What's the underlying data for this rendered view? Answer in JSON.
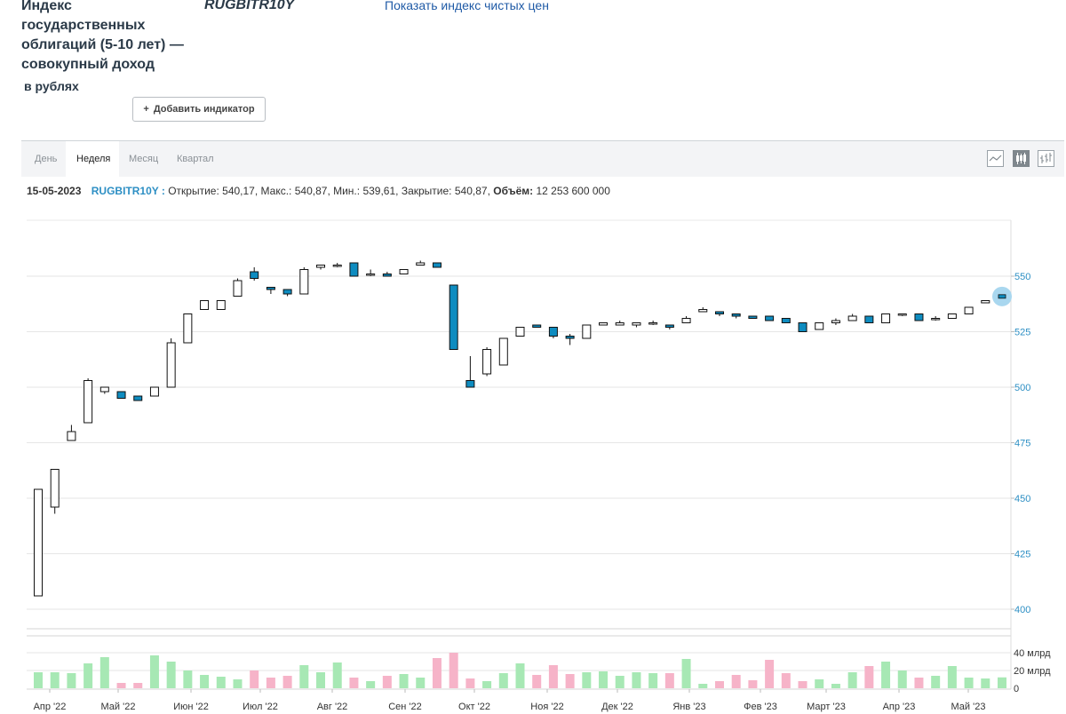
{
  "header": {
    "title": "Индекс государственных облигаций (5-10 лет) — совокупный доход",
    "subtitle": "в рублях",
    "ticker": "RUGBITR10Y",
    "clean_price_link": "Показать индекс чистых цен",
    "add_indicator_label": "Добавить индикатор"
  },
  "tabs": [
    {
      "label": "День",
      "active": false
    },
    {
      "label": "Неделя",
      "active": true
    },
    {
      "label": "Месяц",
      "active": false
    },
    {
      "label": "Квартал",
      "active": false
    }
  ],
  "chart_type_icons": [
    "line-chart-icon",
    "candlestick-chart-icon",
    "ohlc-bars-icon"
  ],
  "info_bar": {
    "date": "15-05-2023",
    "symbol": "RUGBITR10Y :",
    "open_label": "Открытие:",
    "open": "540,17",
    "high_label": "Макс.:",
    "high": "540,87",
    "low_label": "Мин.:",
    "low": "539,61",
    "close_label": "Закрытие:",
    "close": "540,87",
    "volume_label": "Объём:",
    "volume": "12 253 600 000"
  },
  "colors": {
    "up_fill": "#ffffff",
    "down_fill": "#0e8cc0",
    "vol_up": "#a7e8b4",
    "vol_down": "#f6b3c8",
    "axis_text": "#2d8fc4",
    "grid": "#e6e6e6"
  },
  "chart_data": {
    "type": "candlestick",
    "price_axis": {
      "min": 400,
      "max": 550,
      "ticks": [
        400,
        425,
        450,
        475,
        500,
        525,
        550
      ]
    },
    "volume_axis": {
      "ticks": [
        0,
        20,
        40
      ],
      "unit": "млрд",
      "tick_labels": [
        "0",
        "20 млрд",
        "40 млрд"
      ]
    },
    "x_labels": [
      "Апр '22",
      "Май '22",
      "Июн '22",
      "Июл '22",
      "Авг '22",
      "Сен '22",
      "Окт '22",
      "Ноя '22",
      "Дек '22",
      "Янв '23",
      "Фев '23",
      "Март '23",
      "Апр '23",
      "Май '23"
    ],
    "candles": [
      {
        "o": 406,
        "h": 454,
        "l": 406,
        "c": 454,
        "v": 18
      },
      {
        "o": 446,
        "h": 463,
        "l": 443,
        "c": 463,
        "v": 18
      },
      {
        "o": 476,
        "h": 483,
        "l": 476,
        "c": 480,
        "v": 17
      },
      {
        "o": 484,
        "h": 504,
        "l": 484,
        "c": 503,
        "v": 28
      },
      {
        "o": 498,
        "h": 500,
        "l": 497,
        "c": 500,
        "v": 35
      },
      {
        "o": 498,
        "h": 498,
        "l": 495,
        "c": 495,
        "v": 6
      },
      {
        "o": 496,
        "h": 496,
        "l": 494,
        "c": 494,
        "v": 6
      },
      {
        "o": 496,
        "h": 500,
        "l": 496,
        "c": 500,
        "v": 37
      },
      {
        "o": 500,
        "h": 522,
        "l": 500,
        "c": 520,
        "v": 30
      },
      {
        "o": 520,
        "h": 533,
        "l": 520,
        "c": 533,
        "v": 20
      },
      {
        "o": 535,
        "h": 539,
        "l": 535,
        "c": 539,
        "v": 15
      },
      {
        "o": 535,
        "h": 539,
        "l": 535,
        "c": 539,
        "v": 13
      },
      {
        "o": 541,
        "h": 549,
        "l": 541,
        "c": 548,
        "v": 10
      },
      {
        "o": 552,
        "h": 554,
        "l": 548,
        "c": 549,
        "v": 20
      },
      {
        "o": 545,
        "h": 545,
        "l": 542,
        "c": 544,
        "v": 12
      },
      {
        "o": 544,
        "h": 544,
        "l": 541,
        "c": 542,
        "v": 14
      },
      {
        "o": 542,
        "h": 554,
        "l": 542,
        "c": 553,
        "v": 26
      },
      {
        "o": 554,
        "h": 555,
        "l": 553,
        "c": 555,
        "v": 18
      },
      {
        "o": 555,
        "h": 556,
        "l": 554,
        "c": 555,
        "v": 29
      },
      {
        "o": 556,
        "h": 556,
        "l": 550,
        "c": 550,
        "v": 12
      },
      {
        "o": 551,
        "h": 553,
        "l": 550,
        "c": 551,
        "v": 8
      },
      {
        "o": 551,
        "h": 552,
        "l": 550,
        "c": 550,
        "v": 14
      },
      {
        "o": 551,
        "h": 553,
        "l": 551,
        "c": 553,
        "v": 16
      },
      {
        "o": 555,
        "h": 557,
        "l": 555,
        "c": 556,
        "v": 12
      },
      {
        "o": 556,
        "h": 556,
        "l": 554,
        "c": 554,
        "v": 34
      },
      {
        "o": 546,
        "h": 546,
        "l": 517,
        "c": 517,
        "v": 40
      },
      {
        "o": 503,
        "h": 514,
        "l": 500,
        "c": 500,
        "v": 11
      },
      {
        "o": 506,
        "h": 518,
        "l": 505,
        "c": 517,
        "v": 8
      },
      {
        "o": 510,
        "h": 522,
        "l": 510,
        "c": 522,
        "v": 17
      },
      {
        "o": 523,
        "h": 527,
        "l": 523,
        "c": 527,
        "v": 28
      },
      {
        "o": 528,
        "h": 528,
        "l": 527,
        "c": 527,
        "v": 15
      },
      {
        "o": 527,
        "h": 527,
        "l": 522,
        "c": 523,
        "v": 26
      },
      {
        "o": 523,
        "h": 524,
        "l": 519,
        "c": 522,
        "v": 16
      },
      {
        "o": 522,
        "h": 528,
        "l": 522,
        "c": 528,
        "v": 18
      },
      {
        "o": 528,
        "h": 529,
        "l": 528,
        "c": 529,
        "v": 19
      },
      {
        "o": 528,
        "h": 530,
        "l": 528,
        "c": 529,
        "v": 14
      },
      {
        "o": 528,
        "h": 529,
        "l": 527,
        "c": 529,
        "v": 18
      },
      {
        "o": 529,
        "h": 530,
        "l": 528,
        "c": 529,
        "v": 17
      },
      {
        "o": 528,
        "h": 528,
        "l": 526,
        "c": 527,
        "v": 17
      },
      {
        "o": 529,
        "h": 532,
        "l": 529,
        "c": 531,
        "v": 33
      },
      {
        "o": 534,
        "h": 536,
        "l": 534,
        "c": 535,
        "v": 5
      },
      {
        "o": 534,
        "h": 534,
        "l": 532,
        "c": 533,
        "v": 8
      },
      {
        "o": 533,
        "h": 533,
        "l": 531,
        "c": 532,
        "v": 15
      },
      {
        "o": 532,
        "h": 532,
        "l": 531,
        "c": 531,
        "v": 9
      },
      {
        "o": 532,
        "h": 532,
        "l": 530,
        "c": 530,
        "v": 32
      },
      {
        "o": 531,
        "h": 531,
        "l": 529,
        "c": 529,
        "v": 17
      },
      {
        "o": 529,
        "h": 529,
        "l": 525,
        "c": 525,
        "v": 8
      },
      {
        "o": 526,
        "h": 529,
        "l": 526,
        "c": 529,
        "v": 10
      },
      {
        "o": 529,
        "h": 531,
        "l": 528,
        "c": 530,
        "v": 5
      },
      {
        "o": 530,
        "h": 533,
        "l": 530,
        "c": 532,
        "v": 18
      },
      {
        "o": 532,
        "h": 532,
        "l": 529,
        "c": 529,
        "v": 25
      },
      {
        "o": 529,
        "h": 533,
        "l": 529,
        "c": 533,
        "v": 30
      },
      {
        "o": 533,
        "h": 533,
        "l": 532,
        "c": 533,
        "v": 20
      },
      {
        "o": 533,
        "h": 533,
        "l": 530,
        "c": 530,
        "v": 12
      },
      {
        "o": 531,
        "h": 532,
        "l": 530,
        "c": 531,
        "v": 14
      },
      {
        "o": 531,
        "h": 533,
        "l": 531,
        "c": 533,
        "v": 25
      },
      {
        "o": 533,
        "h": 536,
        "l": 533,
        "c": 536,
        "v": 12
      },
      {
        "o": 538,
        "h": 539,
        "l": 538,
        "c": 539,
        "v": 11
      },
      {
        "o": 540.17,
        "h": 540.87,
        "l": 539.61,
        "c": 540.87,
        "v": 12.25
      }
    ]
  }
}
